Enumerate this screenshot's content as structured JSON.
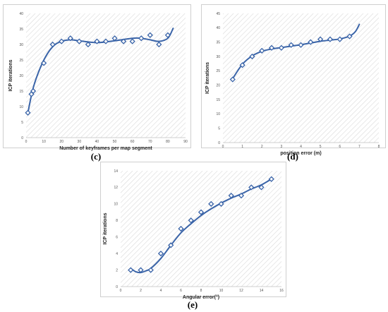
{
  "captions": {
    "c": "(c)",
    "d": "(d)",
    "e": "(e)"
  },
  "style": {
    "line_color": "#3a64a8",
    "marker_color": "#3a64a8",
    "hatch_color": "#d9d9d9"
  },
  "chart_data": [
    {
      "id": "c",
      "type": "line",
      "title": "",
      "xlabel": "Number of keyframes per map segment",
      "ylabel": "ICP iterations",
      "xlim": [
        0,
        90
      ],
      "ylim": [
        0,
        40
      ],
      "xticks": [
        0,
        10,
        20,
        30,
        40,
        50,
        60,
        70,
        80,
        90
      ],
      "yticks": [
        0,
        5,
        10,
        15,
        20,
        25,
        30,
        35,
        40
      ],
      "series": [
        {
          "markers": {
            "x": [
              1,
              3,
              4,
              10,
              15,
              20,
              25,
              30,
              35,
              40,
              45,
              50,
              55,
              60,
              65,
              70,
              75,
              80
            ],
            "y": [
              8,
              14,
              15,
              24,
              30,
              31,
              32,
              31,
              30,
              31,
              31,
              32,
              31,
              31,
              32,
              33,
              30,
              33
            ]
          },
          "trend": {
            "x": [
              1,
              4,
              8,
              12,
              16,
              20,
              25,
              30,
              40,
              50,
              60,
              65,
              70,
              75,
              80,
              83
            ],
            "y": [
              8,
              16,
              22.5,
              27,
              29.8,
              31,
              31.5,
              31.2,
              30.6,
              31.2,
              32,
              32,
              31.5,
              31,
              32,
              35.2
            ]
          }
        }
      ]
    },
    {
      "id": "d",
      "type": "line",
      "title": "",
      "xlabel": "position error (m)",
      "ylabel": "ICP iterations",
      "xlim": [
        0,
        8
      ],
      "ylim": [
        0,
        45
      ],
      "xticks": [
        0,
        1,
        2,
        3,
        4,
        5,
        6,
        7,
        8
      ],
      "yticks": [
        0,
        5,
        10,
        15,
        20,
        25,
        30,
        35,
        40,
        45
      ],
      "series": [
        {
          "markers": {
            "x": [
              0.5,
              1,
              1.5,
              2,
              2.5,
              3,
              3.5,
              4,
              4.5,
              5,
              5.5,
              6,
              6.5
            ],
            "y": [
              22,
              27,
              30,
              32,
              33,
              33,
              34,
              34,
              35,
              36,
              36,
              36,
              37
            ]
          },
          "trend": {
            "x": [
              0.5,
              1,
              1.5,
              2,
              2.5,
              3,
              3.5,
              4,
              4.5,
              5,
              5.5,
              6,
              6.5,
              6.8,
              7
            ],
            "y": [
              22.3,
              27.3,
              30.2,
              31.8,
              32.6,
              33.1,
              33.6,
              34.1,
              34.7,
              35.3,
              35.7,
              36.1,
              37.1,
              38.7,
              41.2
            ]
          }
        }
      ]
    },
    {
      "id": "e",
      "type": "line",
      "title": "",
      "xlabel": "Angular error(°)",
      "ylabel": "ICP iterations",
      "xlim": [
        0,
        16
      ],
      "ylim": [
        0,
        14
      ],
      "xticks": [
        0,
        2,
        4,
        6,
        8,
        10,
        12,
        14,
        16
      ],
      "yticks": [
        0,
        2,
        4,
        6,
        8,
        10,
        12,
        14
      ],
      "series": [
        {
          "markers": {
            "x": [
              1,
              2,
              3,
              4,
              5,
              6,
              7,
              8,
              9,
              10,
              11,
              12,
              13,
              14,
              15
            ],
            "y": [
              2,
              2,
              2,
              4,
              5,
              7,
              8,
              9,
              10,
              10,
              11,
              11,
              12,
              12,
              13
            ]
          },
          "trend": {
            "x": [
              1,
              1.5,
              2,
              2.5,
              3,
              4,
              5,
              6,
              7,
              8,
              9,
              10,
              11,
              12,
              13,
              14,
              15
            ],
            "y": [
              2.2,
              1.8,
              1.7,
              1.9,
              2.2,
              3.4,
              5,
              6.5,
              7.6,
              8.6,
              9.4,
              10.1,
              10.7,
              11.2,
              11.8,
              12.3,
              13
            ]
          }
        }
      ]
    }
  ]
}
